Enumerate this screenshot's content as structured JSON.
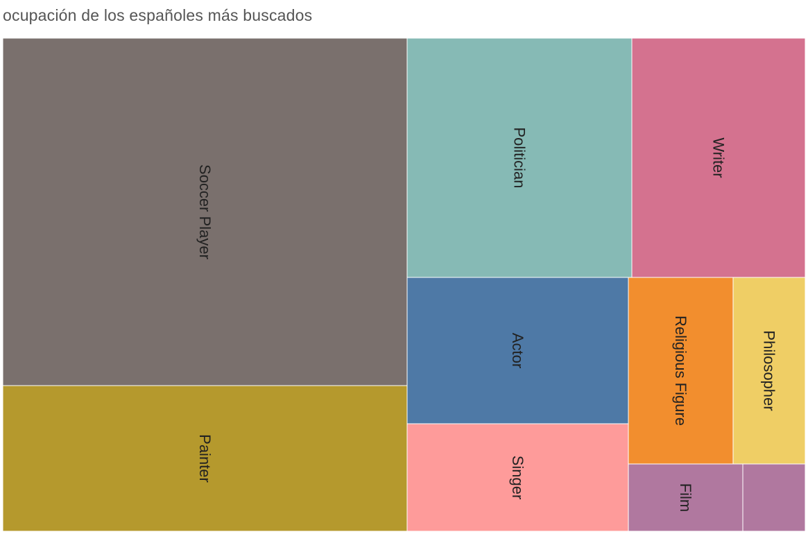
{
  "chart_title": "ocupación de los españoles más buscados",
  "chart_data": {
    "type": "treemap",
    "title": "ocupación de los españoles más buscados",
    "items": [
      {
        "label": "Soccer Player",
        "value": 291,
        "color": "#7a706d"
      },
      {
        "label": "Painter",
        "value": 122,
        "color": "#b5992d"
      },
      {
        "label": "Politician",
        "value": 112,
        "color": "#86bab5"
      },
      {
        "label": "Writer",
        "value": 86,
        "color": "#d4728f"
      },
      {
        "label": "Actor",
        "value": 67,
        "color": "#4e79a6"
      },
      {
        "label": "Singer",
        "value": 49,
        "color": "#fe9b9a"
      },
      {
        "label": "Religious Figure",
        "value": 33,
        "color": "#f28e2e"
      },
      {
        "label": "Philosopher",
        "value": 21,
        "color": "#efce65"
      },
      {
        "label": "Film",
        "value": 11,
        "color": "#b0789f"
      },
      {
        "label": "",
        "value": 6,
        "color": "#b0789f"
      }
    ]
  }
}
